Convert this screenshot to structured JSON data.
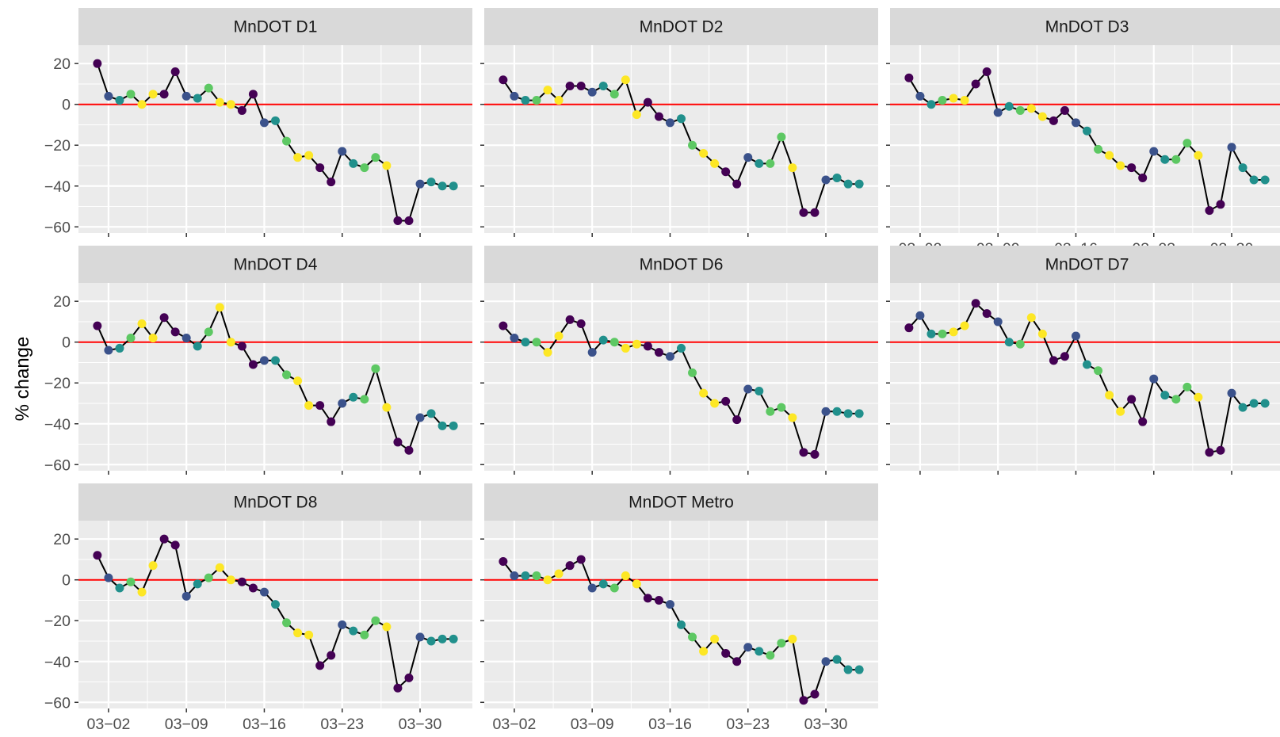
{
  "chart_data": {
    "type": "line",
    "chart_kind": "faceted line chart with points",
    "ylabel": "% change",
    "xlabel": "",
    "ylim": [
      -63,
      29
    ],
    "y_ticks": [
      20,
      0,
      -20,
      -40,
      -60
    ],
    "y_tick_labels": [
      "20",
      "0",
      "−20",
      "−40",
      "−60"
    ],
    "x_range": [
      -1.7,
      33.7
    ],
    "x_ticks": [
      1,
      8,
      15,
      22,
      29
    ],
    "x_tick_labels": [
      "03−02",
      "03−09",
      "03−16",
      "03−23",
      "03−30"
    ],
    "x_unit": "day of March 2020 (0 = 03-01)",
    "reference_line": {
      "y": 0,
      "color": "#ff0000"
    },
    "line_color": "#000000",
    "point_palette": [
      "#440154",
      "#3b528b",
      "#21908c",
      "#5dc863",
      "#fde725"
    ],
    "grid": true,
    "legend": "none",
    "panel_background": "#ebebeb",
    "strip_background": "#d9d9d9",
    "x_days": [
      0,
      1,
      2,
      3,
      4,
      5,
      6,
      7,
      8,
      9,
      10,
      11,
      12,
      13,
      14,
      15,
      16,
      17,
      18,
      19,
      20,
      21,
      22,
      23,
      24,
      25,
      26,
      27,
      28,
      29,
      30,
      31,
      32
    ],
    "point_colors": [
      "#440154",
      "#3b528b",
      "#21908c",
      "#5dc863",
      "#fde725",
      "#fde725",
      "#440154",
      "#440154",
      "#3b528b",
      "#21908c",
      "#5dc863",
      "#fde725",
      "#fde725",
      "#440154",
      "#440154",
      "#3b528b",
      "#21908c",
      "#5dc863",
      "#fde725",
      "#fde725",
      "#440154",
      "#440154",
      "#3b528b",
      "#21908c",
      "#5dc863",
      "#5dc863",
      "#fde725",
      "#440154",
      "#440154",
      "#3b528b",
      "#21908c",
      "#21908c",
      "#21908c"
    ],
    "facets": [
      {
        "name": "MnDOT D1",
        "values": [
          20,
          4,
          2,
          5,
          0,
          5,
          5,
          16,
          4,
          3,
          8,
          1,
          0,
          -3,
          5,
          -9,
          -8,
          -18,
          -26,
          -25,
          -31,
          -38,
          -23,
          -29,
          -31,
          -26,
          -30,
          -57,
          -57,
          -39,
          -38,
          -40,
          -40
        ]
      },
      {
        "name": "MnDOT D2",
        "values": [
          12,
          4,
          2,
          2,
          7,
          2,
          9,
          9,
          6,
          9,
          5,
          12,
          -5,
          1,
          -6,
          -9,
          -7,
          -20,
          -24,
          -29,
          -33,
          -39,
          -26,
          -29,
          -29,
          -16,
          -31,
          -53,
          -53,
          -37,
          -36,
          -39,
          -39
        ]
      },
      {
        "name": "MnDOT D3",
        "values": [
          13,
          4,
          0,
          2,
          3,
          2,
          10,
          16,
          -4,
          -1,
          -3,
          -2,
          -6,
          -8,
          -3,
          -9,
          -13,
          -22,
          -25,
          -30,
          -31,
          -36,
          -23,
          -27,
          -27,
          -19,
          -25,
          -52,
          -49,
          -21,
          -31,
          -37,
          -37
        ]
      },
      {
        "name": "MnDOT D4",
        "values": [
          8,
          -4,
          -3,
          2,
          9,
          2,
          12,
          5,
          2,
          -2,
          5,
          17,
          0,
          -2,
          -11,
          -9,
          -9,
          -16,
          -19,
          -31,
          -31,
          -39,
          -30,
          -27,
          -28,
          -13,
          -32,
          -49,
          -53,
          -37,
          -35,
          -41,
          -41
        ]
      },
      {
        "name": "MnDOT D6",
        "values": [
          8,
          2,
          0,
          0,
          -5,
          3,
          11,
          9,
          -5,
          1,
          0,
          -3,
          -1,
          -2,
          -5,
          -7,
          -3,
          -15,
          -25,
          -30,
          -29,
          -38,
          -23,
          -24,
          -34,
          -32,
          -37,
          -54,
          -55,
          -34,
          -34,
          -35,
          -35
        ]
      },
      {
        "name": "MnDOT D7",
        "values": [
          7,
          13,
          4,
          4,
          5,
          8,
          19,
          14,
          10,
          0,
          -1,
          12,
          4,
          -9,
          -7,
          3,
          -11,
          -14,
          -26,
          -34,
          -28,
          -39,
          -18,
          -26,
          -28,
          -22,
          -27,
          -54,
          -53,
          -25,
          -32,
          -30,
          -30
        ]
      },
      {
        "name": "MnDOT D8",
        "values": [
          12,
          1,
          -4,
          -1,
          -6,
          7,
          20,
          17,
          -8,
          -2,
          1,
          6,
          0,
          -1,
          -4,
          -6,
          -12,
          -21,
          -26,
          -27,
          -42,
          -37,
          -22,
          -25,
          -27,
          -20,
          -23,
          -53,
          -48,
          -28,
          -30,
          -29,
          -29
        ]
      },
      {
        "name": "MnDOT Metro",
        "values": [
          9,
          2,
          2,
          2,
          0,
          3,
          7,
          10,
          -4,
          -2,
          -4,
          2,
          -2,
          -9,
          -10,
          -12,
          -22,
          -28,
          -35,
          -29,
          -36,
          -40,
          -33,
          -35,
          -37,
          -31,
          -29,
          -59,
          -56,
          -40,
          -39,
          -44,
          -44
        ]
      }
    ]
  }
}
